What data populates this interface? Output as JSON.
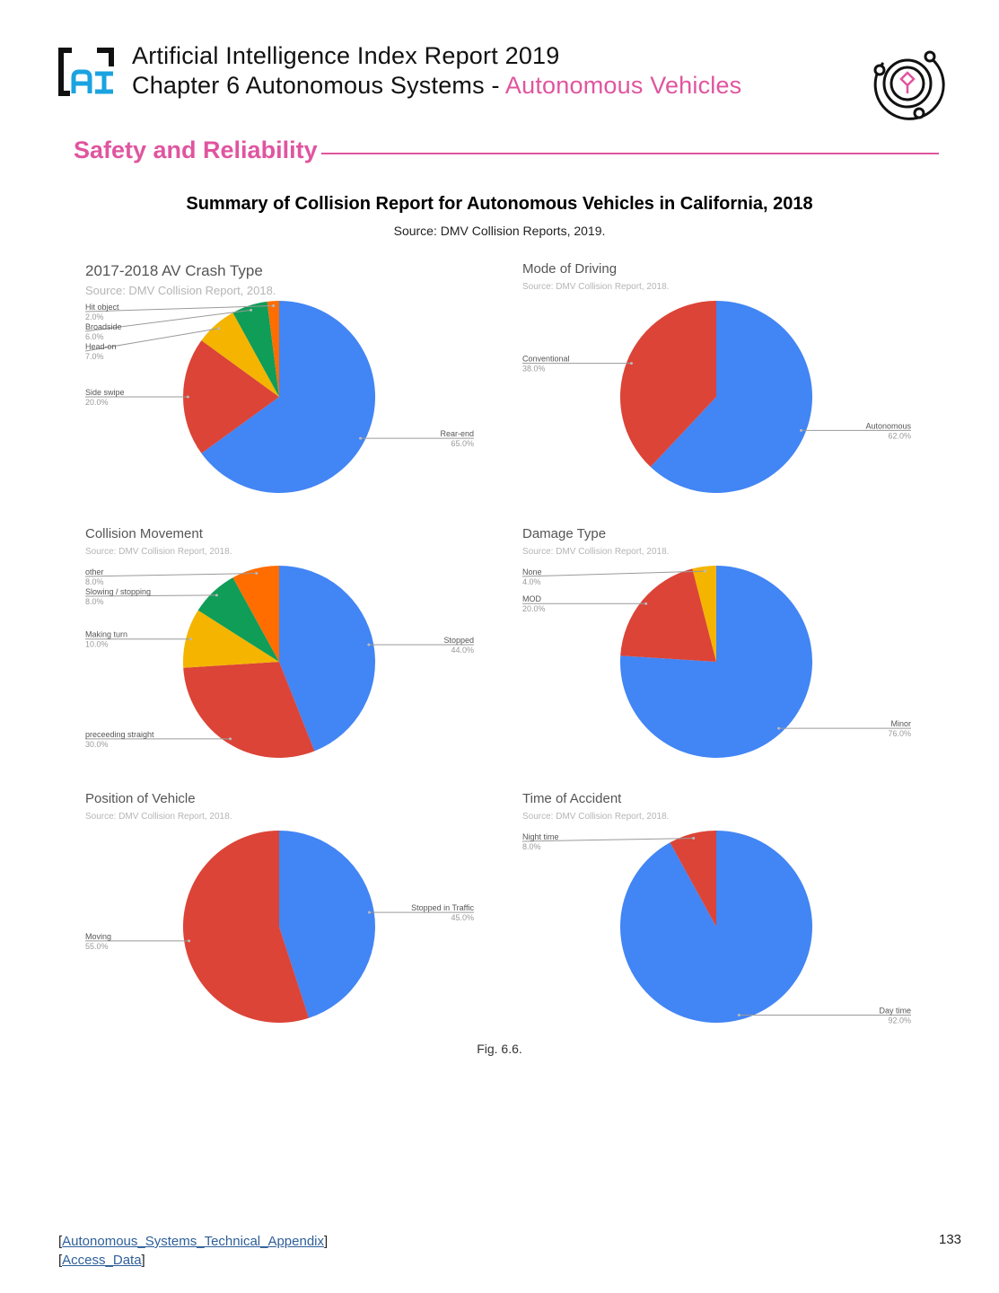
{
  "header": {
    "report_title": "Artificial Intelligence Index Report 2019",
    "chapter_prefix": "Chapter 6 Autonomous Systems - ",
    "chapter_accent": "Autonomous Vehicles",
    "logo_text": "AI",
    "accent_color": "#e0559f"
  },
  "section": {
    "title": "Safety and Reliability"
  },
  "figure": {
    "title": "Summary of Collision Report for Autonomous Vehicles in California, 2018",
    "source": "Source: DMV Collision Reports, 2019.",
    "caption": "Fig. 6.6."
  },
  "chart_data": [
    {
      "type": "pie",
      "title": "2017-2018 AV Crash Type",
      "subtitle": "Source: DMV Collision Report, 2018.",
      "slices": [
        {
          "label": "Rear-end",
          "value": 65.0,
          "pct": "65.0%",
          "color": "#4285f4"
        },
        {
          "label": "Side swipe",
          "value": 20.0,
          "pct": "20.0%",
          "color": "#db4437"
        },
        {
          "label": "Head-on",
          "value": 7.0,
          "pct": "7.0%",
          "color": "#f4b400"
        },
        {
          "label": "Broadside",
          "value": 6.0,
          "pct": "6.0%",
          "color": "#0f9d58"
        },
        {
          "label": "Hit object",
          "value": 2.0,
          "pct": "2.0%",
          "color": "#ff6d01"
        }
      ]
    },
    {
      "type": "pie",
      "title": "Mode of Driving",
      "subtitle": "Source: DMV Collision Report, 2018.",
      "slices": [
        {
          "label": "Autonomous",
          "value": 62.0,
          "pct": "62.0%",
          "color": "#4285f4"
        },
        {
          "label": "Conventional",
          "value": 38.0,
          "pct": "38.0%",
          "color": "#db4437"
        }
      ]
    },
    {
      "type": "pie",
      "title": "Collision Movement",
      "subtitle": "Source: DMV Collision Report, 2018.",
      "slices": [
        {
          "label": "Stopped",
          "value": 44.0,
          "pct": "44.0%",
          "color": "#4285f4"
        },
        {
          "label": "preceeding straight",
          "value": 30.0,
          "pct": "30.0%",
          "color": "#db4437"
        },
        {
          "label": "Making turn",
          "value": 10.0,
          "pct": "10.0%",
          "color": "#f4b400"
        },
        {
          "label": "Slowing / stopping",
          "value": 8.0,
          "pct": "8.0%",
          "color": "#0f9d58"
        },
        {
          "label": "other",
          "value": 8.0,
          "pct": "8.0%",
          "color": "#ff6d01"
        }
      ]
    },
    {
      "type": "pie",
      "title": "Damage Type",
      "subtitle": "Source: DMV Collision Report, 2018.",
      "slices": [
        {
          "label": "Minor",
          "value": 76.0,
          "pct": "76.0%",
          "color": "#4285f4"
        },
        {
          "label": "MOD",
          "value": 20.0,
          "pct": "20.0%",
          "color": "#db4437"
        },
        {
          "label": "None",
          "value": 4.0,
          "pct": "4.0%",
          "color": "#f4b400"
        }
      ]
    },
    {
      "type": "pie",
      "title": "Position of Vehicle",
      "subtitle": "Source: DMV Collision Report, 2018.",
      "slices": [
        {
          "label": "Stopped in Traffic",
          "value": 45.0,
          "pct": "45.0%",
          "color": "#4285f4"
        },
        {
          "label": "Moving",
          "value": 55.0,
          "pct": "55.0%",
          "color": "#db4437"
        }
      ]
    },
    {
      "type": "pie",
      "title": "Time of Accident",
      "subtitle": "Source: DMV Collision Report, 2018.",
      "slices": [
        {
          "label": "Day time",
          "value": 92.0,
          "pct": "92.0%",
          "color": "#4285f4"
        },
        {
          "label": "Night time",
          "value": 8.0,
          "pct": "8.0%",
          "color": "#db4437"
        }
      ]
    }
  ],
  "footer": {
    "appendix_link": "Autonomous_Systems_Technical_Appendix",
    "data_link": "Access_Data",
    "page_number": "133"
  }
}
